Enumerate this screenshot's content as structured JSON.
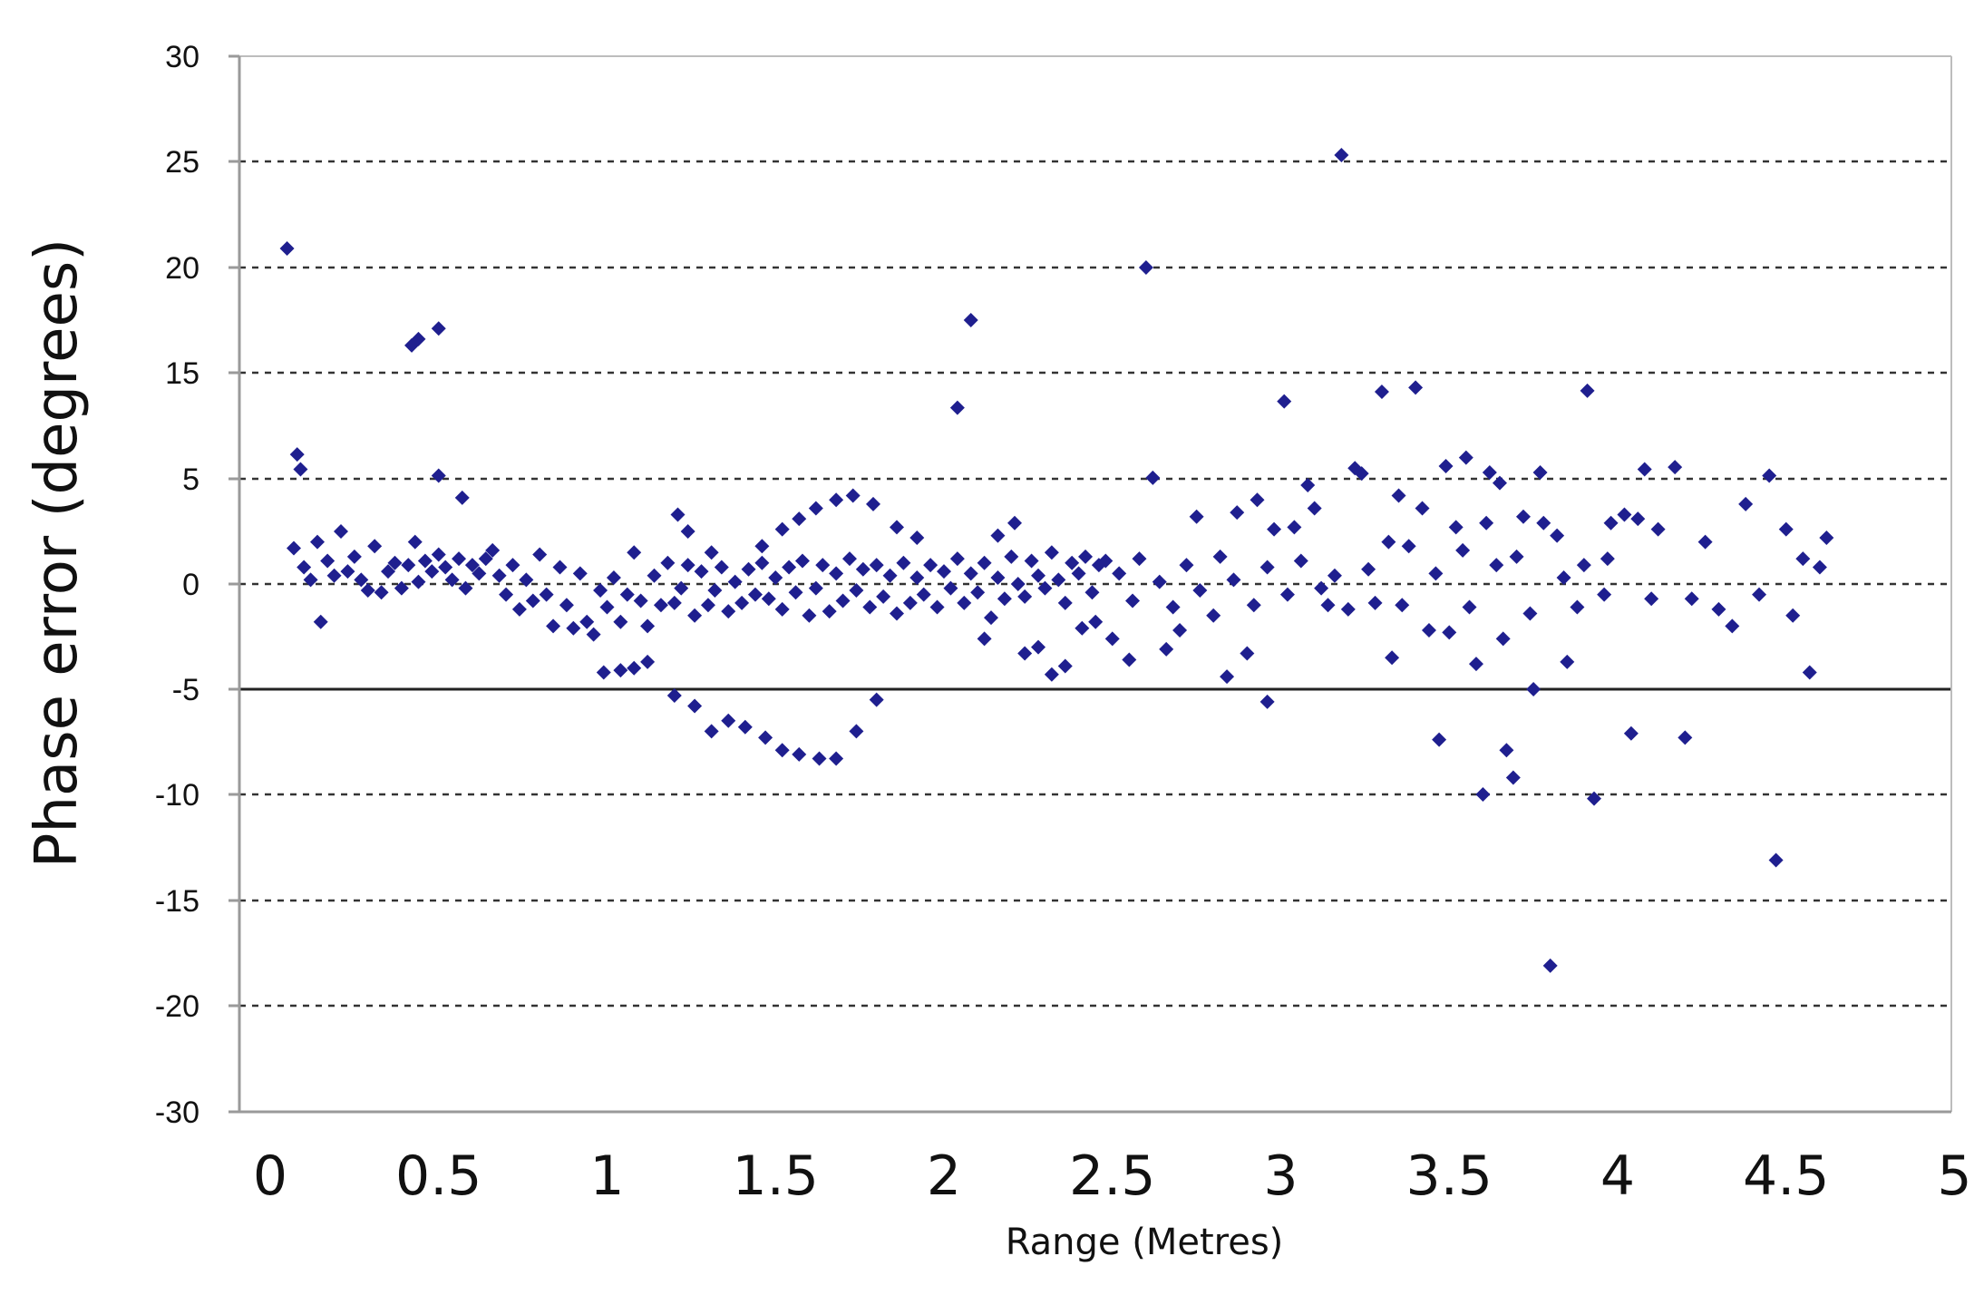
{
  "chart_data": {
    "type": "scatter",
    "xlabel": "Range (Metres)",
    "ylabel": "Phase error (degrees)",
    "x_ticks": [
      0,
      0.5,
      1,
      1.5,
      2,
      2.5,
      3,
      3.5,
      4,
      4.5,
      5
    ],
    "x_tick_labels": [
      "0",
      "0.5",
      "1",
      "1.5",
      "2",
      "2.5",
      "3",
      "3.5",
      "4",
      "4.5",
      "5"
    ],
    "y_tick_labels": [
      "30",
      "25",
      "20",
      "15",
      "5",
      "0",
      "-5",
      "-10",
      "-15",
      "-20",
      "-30"
    ],
    "xlim": [
      0,
      5
    ],
    "grid": "horizontal dashed",
    "legend": "none",
    "marker_color": "#1f1f8f",
    "series": [
      {
        "points": [
          [
            0.05,
            20.9
          ],
          [
            0.08,
            7.3
          ],
          [
            0.09,
            5.9
          ],
          [
            0.07,
            1.7
          ],
          [
            0.1,
            0.8
          ],
          [
            0.12,
            0.2
          ],
          [
            0.14,
            2.0
          ],
          [
            0.15,
            -1.8
          ],
          [
            0.17,
            1.1
          ],
          [
            0.19,
            0.4
          ],
          [
            0.21,
            2.5
          ],
          [
            0.23,
            0.6
          ],
          [
            0.25,
            1.3
          ],
          [
            0.27,
            0.2
          ],
          [
            0.29,
            -0.3
          ],
          [
            0.31,
            1.8
          ],
          [
            0.33,
            -0.4
          ],
          [
            0.35,
            0.6
          ],
          [
            0.37,
            1.0
          ],
          [
            0.39,
            -0.2
          ],
          [
            0.41,
            0.9
          ],
          [
            0.43,
            2.0
          ],
          [
            0.44,
            0.1
          ],
          [
            0.46,
            1.1
          ],
          [
            0.48,
            0.6
          ],
          [
            0.5,
            1.4
          ],
          [
            0.52,
            0.8
          ],
          [
            0.54,
            0.2
          ],
          [
            0.56,
            1.2
          ],
          [
            0.58,
            -0.2
          ],
          [
            0.6,
            0.9
          ],
          [
            0.62,
            0.5
          ],
          [
            0.64,
            1.2
          ],
          [
            0.66,
            1.6
          ],
          [
            0.68,
            0.4
          ],
          [
            0.7,
            -0.5
          ],
          [
            0.72,
            0.9
          ],
          [
            0.74,
            -1.2
          ],
          [
            0.76,
            0.2
          ],
          [
            0.78,
            -0.8
          ],
          [
            0.8,
            1.4
          ],
          [
            0.82,
            -0.5
          ],
          [
            0.84,
            -2.0
          ],
          [
            0.86,
            0.8
          ],
          [
            0.88,
            -1.0
          ],
          [
            0.9,
            -2.1
          ],
          [
            0.92,
            0.5
          ],
          [
            0.94,
            -1.8
          ],
          [
            0.96,
            -2.4
          ],
          [
            0.98,
            -0.3
          ],
          [
            1.0,
            -1.1
          ],
          [
            1.02,
            0.3
          ],
          [
            1.04,
            -1.8
          ],
          [
            1.06,
            -0.5
          ],
          [
            1.08,
            1.5
          ],
          [
            1.1,
            -0.8
          ],
          [
            1.12,
            -2.0
          ],
          [
            1.14,
            0.4
          ],
          [
            1.16,
            -1.0
          ],
          [
            1.18,
            1.0
          ],
          [
            1.2,
            -0.9
          ],
          [
            1.22,
            -0.2
          ],
          [
            1.24,
            0.9
          ],
          [
            1.26,
            -1.5
          ],
          [
            1.28,
            0.6
          ],
          [
            1.3,
            -1.0
          ],
          [
            1.32,
            -0.3
          ],
          [
            1.34,
            0.8
          ],
          [
            1.36,
            -1.3
          ],
          [
            1.38,
            0.1
          ],
          [
            1.4,
            -0.9
          ],
          [
            1.42,
            0.7
          ],
          [
            1.44,
            -0.5
          ],
          [
            1.46,
            1.0
          ],
          [
            1.48,
            -0.7
          ],
          [
            1.5,
            0.3
          ],
          [
            1.52,
            -1.2
          ],
          [
            1.54,
            0.8
          ],
          [
            1.56,
            -0.4
          ],
          [
            1.58,
            1.1
          ],
          [
            1.6,
            -1.5
          ],
          [
            1.62,
            -0.2
          ],
          [
            1.64,
            0.9
          ],
          [
            1.66,
            -1.3
          ],
          [
            1.68,
            0.5
          ],
          [
            1.7,
            -0.8
          ],
          [
            1.72,
            1.2
          ],
          [
            1.74,
            -0.3
          ],
          [
            1.76,
            0.7
          ],
          [
            1.78,
            -1.1
          ],
          [
            1.8,
            0.9
          ],
          [
            1.82,
            -0.6
          ],
          [
            1.84,
            0.4
          ],
          [
            1.86,
            -1.4
          ],
          [
            1.88,
            1.0
          ],
          [
            1.9,
            -0.9
          ],
          [
            1.92,
            0.3
          ],
          [
            1.94,
            -0.5
          ],
          [
            1.96,
            0.9
          ],
          [
            1.98,
            -1.1
          ],
          [
            2.0,
            0.6
          ],
          [
            2.02,
            -0.2
          ],
          [
            2.04,
            1.2
          ],
          [
            2.06,
            -0.9
          ],
          [
            2.08,
            0.5
          ],
          [
            2.1,
            -0.4
          ],
          [
            2.12,
            1.0
          ],
          [
            2.14,
            -1.6
          ],
          [
            2.16,
            0.3
          ],
          [
            2.18,
            -0.7
          ],
          [
            2.2,
            1.3
          ],
          [
            2.22,
            0.0
          ],
          [
            2.24,
            -0.6
          ],
          [
            2.26,
            1.1
          ],
          [
            2.28,
            0.4
          ],
          [
            2.3,
            -0.2
          ],
          [
            2.32,
            1.5
          ],
          [
            2.34,
            0.2
          ],
          [
            2.36,
            -0.9
          ],
          [
            2.38,
            1.0
          ],
          [
            2.4,
            0.5
          ],
          [
            2.42,
            1.3
          ],
          [
            2.44,
            -0.4
          ],
          [
            2.46,
            0.9
          ],
          [
            2.48,
            1.1
          ],
          [
            0.42,
            16.3
          ],
          [
            0.44,
            16.6
          ],
          [
            0.5,
            17.1
          ],
          [
            0.5,
            5.3
          ],
          [
            0.57,
            4.1
          ],
          [
            0.99,
            -4.2
          ],
          [
            1.04,
            -4.1
          ],
          [
            1.08,
            -4.0
          ],
          [
            1.12,
            -3.7
          ],
          [
            1.2,
            -5.3
          ],
          [
            1.26,
            -5.8
          ],
          [
            1.31,
            -7.0
          ],
          [
            1.36,
            -6.5
          ],
          [
            1.41,
            -6.8
          ],
          [
            1.47,
            -7.3
          ],
          [
            1.52,
            -7.9
          ],
          [
            1.57,
            -8.1
          ],
          [
            1.63,
            -8.3
          ],
          [
            1.68,
            -8.3
          ],
          [
            1.74,
            -7.0
          ],
          [
            1.8,
            -5.5
          ],
          [
            1.21,
            3.3
          ],
          [
            1.24,
            2.5
          ],
          [
            1.31,
            1.5
          ],
          [
            1.46,
            1.8
          ],
          [
            1.52,
            2.6
          ],
          [
            1.57,
            3.1
          ],
          [
            1.62,
            3.6
          ],
          [
            1.68,
            4.0
          ],
          [
            1.73,
            4.2
          ],
          [
            1.79,
            3.8
          ],
          [
            1.86,
            2.7
          ],
          [
            1.92,
            2.2
          ],
          [
            2.04,
            11.7
          ],
          [
            2.08,
            17.5
          ],
          [
            2.12,
            -2.6
          ],
          [
            2.16,
            2.3
          ],
          [
            2.21,
            2.9
          ],
          [
            2.24,
            -3.3
          ],
          [
            2.28,
            -3.0
          ],
          [
            2.32,
            -4.3
          ],
          [
            2.36,
            -3.9
          ],
          [
            2.41,
            -2.1
          ],
          [
            2.45,
            -1.8
          ],
          [
            2.5,
            -2.6
          ],
          [
            2.55,
            -3.6
          ],
          [
            2.6,
            20.0
          ],
          [
            2.62,
            5.1
          ],
          [
            2.66,
            -3.1
          ],
          [
            2.7,
            -2.2
          ],
          [
            2.75,
            3.2
          ],
          [
            2.8,
            -1.5
          ],
          [
            2.84,
            -4.4
          ],
          [
            2.87,
            3.4
          ],
          [
            2.9,
            -3.3
          ],
          [
            2.93,
            4.0
          ],
          [
            2.96,
            -5.6
          ],
          [
            2.98,
            2.6
          ],
          [
            3.01,
            12.3
          ],
          [
            3.04,
            2.7
          ],
          [
            3.08,
            4.7
          ],
          [
            3.1,
            3.6
          ],
          [
            3.14,
            -1.0
          ],
          [
            3.18,
            25.3
          ],
          [
            3.22,
            6.0
          ],
          [
            3.24,
            5.5
          ],
          [
            3.3,
            13.2
          ],
          [
            3.33,
            -3.5
          ],
          [
            3.35,
            4.2
          ],
          [
            3.4,
            13.6
          ],
          [
            3.42,
            3.6
          ],
          [
            3.44,
            -2.2
          ],
          [
            3.47,
            -7.4
          ],
          [
            3.49,
            6.2
          ],
          [
            3.52,
            2.7
          ],
          [
            3.55,
            7.0
          ],
          [
            3.58,
            -3.8
          ],
          [
            3.6,
            -10.0
          ],
          [
            3.62,
            5.6
          ],
          [
            3.65,
            4.8
          ],
          [
            3.67,
            -7.9
          ],
          [
            3.69,
            -9.2
          ],
          [
            3.72,
            3.2
          ],
          [
            3.75,
            -5.0
          ],
          [
            3.77,
            5.6
          ],
          [
            3.8,
            -18.1
          ],
          [
            3.82,
            2.3
          ],
          [
            3.85,
            -3.7
          ],
          [
            3.88,
            -1.1
          ],
          [
            3.91,
            13.3
          ],
          [
            3.93,
            -10.2
          ],
          [
            3.96,
            -0.5
          ],
          [
            3.98,
            2.9
          ],
          [
            4.02,
            3.3
          ],
          [
            4.04,
            -7.1
          ],
          [
            4.08,
            5.9
          ],
          [
            4.1,
            -0.7
          ],
          [
            4.12,
            2.6
          ],
          [
            4.17,
            6.1
          ],
          [
            4.2,
            -7.3
          ],
          [
            4.22,
            -0.7
          ],
          [
            4.26,
            2.0
          ],
          [
            4.3,
            -1.2
          ],
          [
            4.34,
            -2.0
          ],
          [
            4.38,
            3.8
          ],
          [
            4.42,
            -0.5
          ],
          [
            4.45,
            5.3
          ],
          [
            4.47,
            -13.1
          ],
          [
            4.5,
            2.6
          ],
          [
            4.52,
            -1.5
          ],
          [
            4.55,
            1.2
          ],
          [
            4.57,
            -4.2
          ],
          [
            4.6,
            0.8
          ],
          [
            4.62,
            2.2
          ],
          [
            2.52,
            0.5
          ],
          [
            2.56,
            -0.8
          ],
          [
            2.58,
            1.2
          ],
          [
            2.64,
            0.1
          ],
          [
            2.68,
            -1.1
          ],
          [
            2.72,
            0.9
          ],
          [
            2.76,
            -0.3
          ],
          [
            2.82,
            1.3
          ],
          [
            2.86,
            0.2
          ],
          [
            2.92,
            -1.0
          ],
          [
            2.96,
            0.8
          ],
          [
            3.02,
            -0.5
          ],
          [
            3.06,
            1.1
          ],
          [
            3.12,
            -0.2
          ],
          [
            3.16,
            0.4
          ],
          [
            3.2,
            -1.2
          ],
          [
            3.26,
            0.7
          ],
          [
            3.28,
            -0.9
          ],
          [
            3.32,
            2.0
          ],
          [
            3.36,
            -1.0
          ],
          [
            3.38,
            1.8
          ],
          [
            3.46,
            0.5
          ],
          [
            3.5,
            -2.3
          ],
          [
            3.54,
            1.6
          ],
          [
            3.56,
            -1.1
          ],
          [
            3.61,
            2.9
          ],
          [
            3.64,
            0.9
          ],
          [
            3.66,
            -2.6
          ],
          [
            3.7,
            1.3
          ],
          [
            3.74,
            -1.4
          ],
          [
            3.78,
            2.9
          ],
          [
            3.84,
            0.3
          ],
          [
            3.9,
            0.9
          ],
          [
            3.97,
            1.2
          ],
          [
            4.06,
            3.1
          ]
        ]
      }
    ]
  }
}
